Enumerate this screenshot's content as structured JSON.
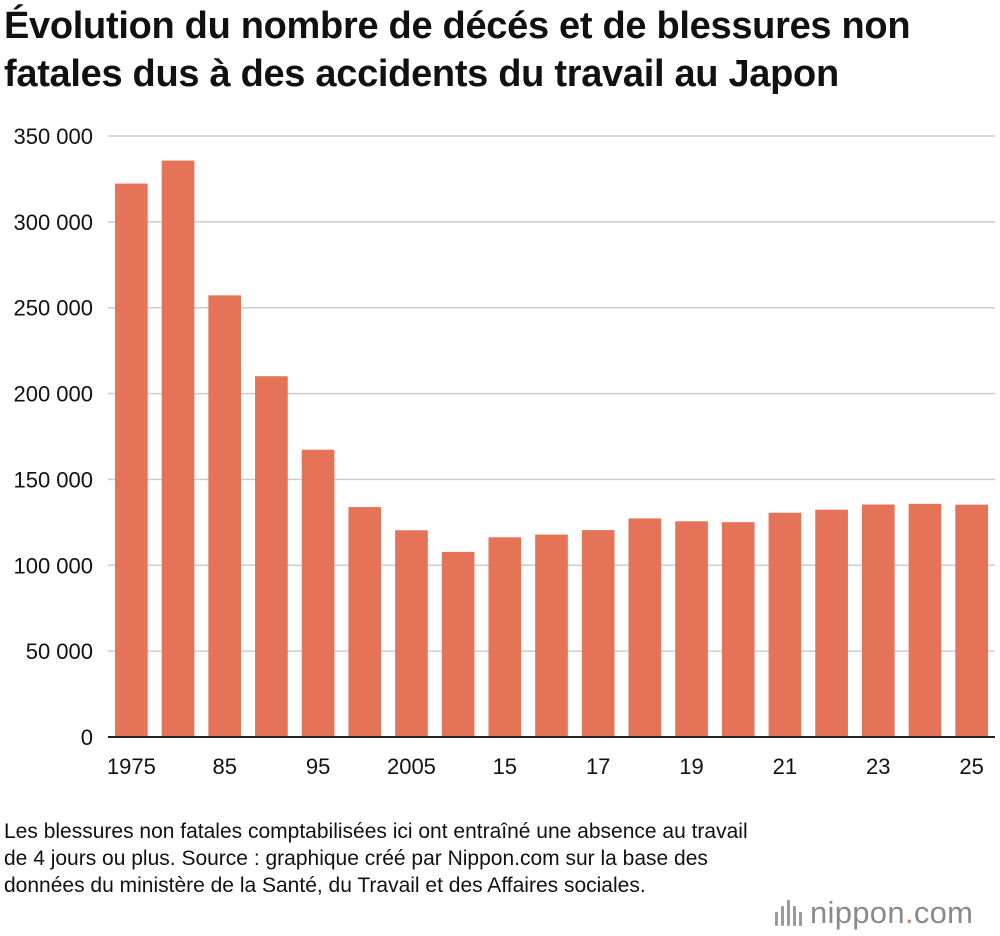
{
  "title": "Évolution du nombre de décés et de blessures non fatales dus à des accidents du travail au Japon",
  "note": "Les blessures non fatales comptabilisées ici ont entraîné une absence au travail de 4 jours ou plus. Source : graphique créé par Nippon.com sur la base des données du ministère de la Santé, du Travail et des Affaires sociales.",
  "brand": {
    "name": "nippon",
    "dot": ".",
    "suffix": "com",
    "icon": "nippon-logo-icon"
  },
  "colors": {
    "bar": "#e57357",
    "grid": "#cccccc",
    "axis": "#222222",
    "text": "#111111"
  },
  "chart_data": {
    "type": "bar",
    "title": "Évolution du nombre de décés et de blessures non fatales dus à des accidents du travail au Japon",
    "xlabel": "",
    "ylabel": "",
    "ylim": [
      0,
      350000
    ],
    "yticks": [
      0,
      50000,
      100000,
      150000,
      200000,
      250000,
      300000,
      350000
    ],
    "ytick_labels": [
      "0",
      "50 000",
      "100 000",
      "150 000",
      "200 000",
      "250 000",
      "300 000",
      "350 000"
    ],
    "categories": [
      "1975",
      "1980",
      "1985",
      "1990",
      "1995",
      "2000",
      "2005",
      "2010",
      "2015",
      "2016",
      "2017",
      "2018",
      "2019",
      "2020",
      "2021",
      "2022",
      "2023",
      "2024",
      "2025"
    ],
    "xtick_labels": [
      "1975",
      "",
      "85",
      "",
      "95",
      "",
      "2005",
      "",
      "15",
      "",
      "17",
      "",
      "19",
      "",
      "21",
      "",
      "23",
      "",
      "25"
    ],
    "values": [
      322300,
      335700,
      257200,
      210100,
      167300,
      133900,
      120400,
      107800,
      116300,
      117900,
      120500,
      127300,
      125600,
      125100,
      130600,
      132400,
      135400,
      135800,
      135300
    ],
    "grid": true,
    "legend": "none"
  }
}
